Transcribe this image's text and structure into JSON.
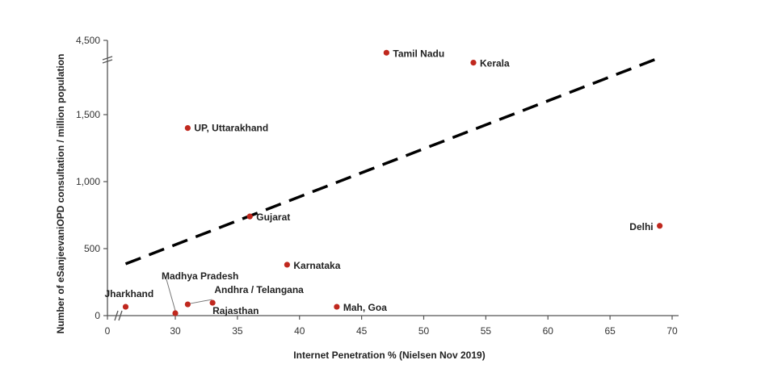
{
  "chart_data": {
    "type": "scatter",
    "title": "",
    "xlabel": "Internet Penetration % (Nielsen Nov 2019)",
    "ylabel": "Number of eSanjeevaniOPD consultation / million population",
    "x_ticks": [
      "0",
      "30",
      "35",
      "40",
      "45",
      "50",
      "55",
      "60",
      "65",
      "70"
    ],
    "y_ticks": [
      "0",
      "500",
      "1,000",
      "1,500",
      "4,500"
    ],
    "x_axis_break": "between 0 and 30",
    "y_axis_break": "between 1,500 and 4,500",
    "xlim": [
      0,
      70
    ],
    "ylim": [
      0,
      4500
    ],
    "grid": false,
    "point_color": "#c0281e",
    "trendline": {
      "style": "dashed",
      "color": "#000000",
      "x": [
        26,
        69
      ],
      "y": [
        386,
        3800
      ]
    },
    "points": [
      {
        "name": "Jharkhand",
        "x": 26,
        "y": 66
      },
      {
        "name": "Madhya Pradesh",
        "x": 30,
        "y": 18
      },
      {
        "name": "Andhra / Telangana",
        "x": 31,
        "y": 84
      },
      {
        "name": "Rajasthan",
        "x": 33,
        "y": 96
      },
      {
        "name": "UP, Uttarakhand",
        "x": 31,
        "y": 1400
      },
      {
        "name": "Gujarat",
        "x": 36,
        "y": 740
      },
      {
        "name": "Karnataka",
        "x": 39,
        "y": 380
      },
      {
        "name": "Mah, Goa",
        "x": 43,
        "y": 66
      },
      {
        "name": "Tamil Nadu",
        "x": 47,
        "y": 4000
      },
      {
        "name": "Kerala",
        "x": 54,
        "y": 3600
      },
      {
        "name": "Delhi",
        "x": 69,
        "y": 670
      }
    ]
  }
}
